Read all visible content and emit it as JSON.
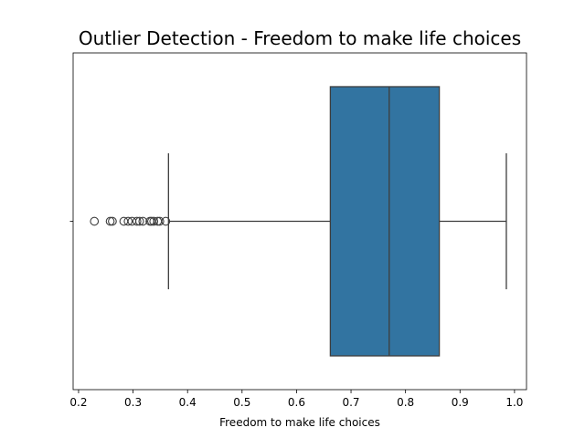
{
  "chart_data": {
    "type": "box",
    "title": "Outlier Detection - Freedom to make life choices",
    "xlabel": "Freedom to make life choices",
    "ylabel": "",
    "xlim": [
      0.19,
      1.022
    ],
    "xticks": [
      0.2,
      0.3,
      0.4,
      0.5,
      0.6,
      0.7,
      0.8,
      0.9,
      1.0
    ],
    "xtick_labels": [
      "0.2",
      "0.3",
      "0.4",
      "0.5",
      "0.6",
      "0.7",
      "0.8",
      "0.9",
      "1.0"
    ],
    "grid": false,
    "box": {
      "whisker_low": 0.365,
      "q1": 0.662,
      "median": 0.77,
      "q3": 0.862,
      "whisker_high": 0.985,
      "color": "#3274a1",
      "edge_color": "#3d3d3d"
    },
    "outliers": [
      0.229,
      0.258,
      0.262,
      0.283,
      0.291,
      0.298,
      0.307,
      0.312,
      0.318,
      0.331,
      0.334,
      0.338,
      0.345,
      0.349,
      0.36
    ]
  }
}
